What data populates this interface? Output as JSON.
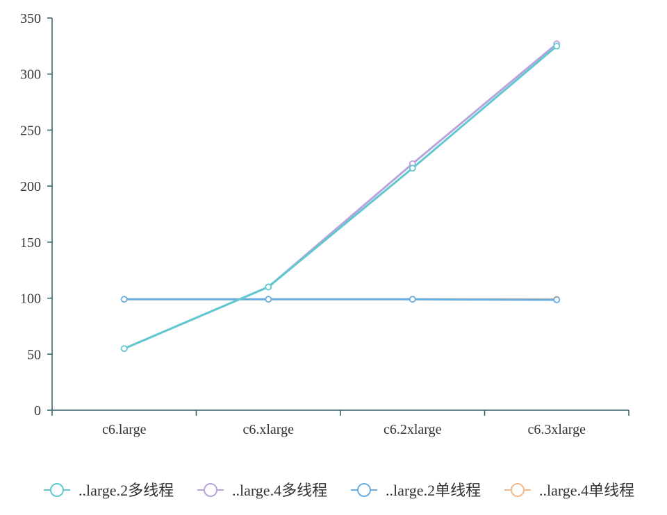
{
  "chart_data": {
    "type": "line",
    "title": "",
    "xlabel": "",
    "ylabel": "",
    "categories": [
      "c6.large",
      "c6.xlarge",
      "c6.2xlarge",
      "c6.3xlarge"
    ],
    "ylim": [
      0,
      350
    ],
    "yticks": [
      "0",
      "50",
      "100",
      "150",
      "200",
      "250",
      "300",
      "350"
    ],
    "grid": false,
    "legend_position": "bottom",
    "axis_color": "#2f5d66",
    "series": [
      {
        "name": "..large.2多线程",
        "color": "#5fc9cf",
        "values": [
          55,
          110,
          216,
          325
        ]
      },
      {
        "name": "..large.4多线程",
        "color": "#b9a3df",
        "values": [
          55,
          110,
          220,
          327
        ]
      },
      {
        "name": "..large.2单线程",
        "color": "#6aaee0",
        "values": [
          99,
          99,
          99,
          98.5
        ]
      },
      {
        "name": "..large.4单线程",
        "color": "#f1b98a",
        "values": [
          99,
          99,
          99,
          99
        ]
      }
    ]
  }
}
